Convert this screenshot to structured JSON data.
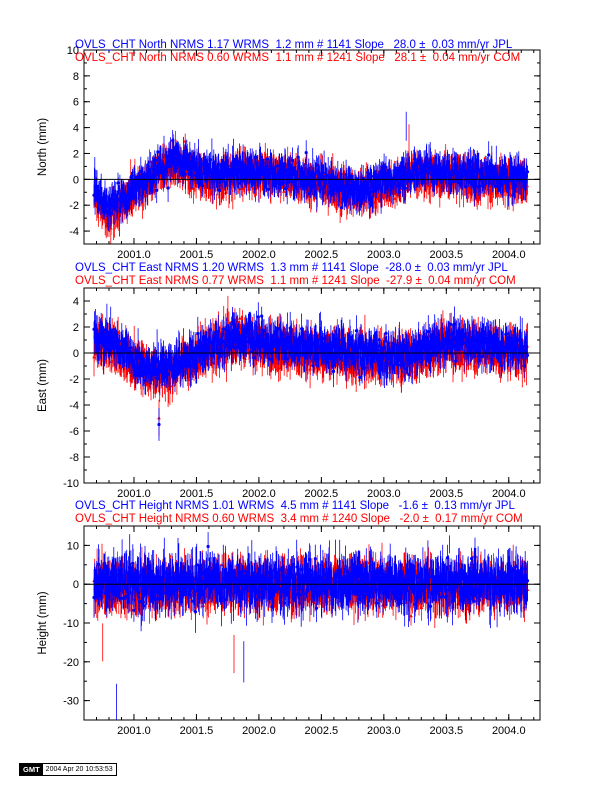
{
  "chart_data": [
    {
      "type": "scatter",
      "title_lines": [
        "OVLS_CHT North NRMS 1.17 WRMS  1.2 mm # 1141 Slope   28.0 ±  0.03 mm/yr JPL",
        "OVLS_CHT North NRMS 0.60 WRMS  1.1 mm # 1241 Slope   28.1 ±  0.04 mm/yr COM"
      ],
      "ylabel": "North (mm)",
      "xlim": [
        2000.6,
        2004.25
      ],
      "ylim": [
        -5,
        10
      ],
      "yticks": [
        -4,
        -2,
        0,
        2,
        4,
        6,
        8,
        10
      ],
      "xticks": [
        2001.0,
        2001.5,
        2002.0,
        2002.5,
        2003.0,
        2003.5,
        2004.0
      ],
      "xtick_labels": [
        "2001.0",
        "2001.5",
        "2002.0",
        "2002.5",
        "2003.0",
        "2003.5",
        "2004.0"
      ],
      "x_start": 2000.68,
      "x_end": 2004.15,
      "series": [
        {
          "color": "#ff0000",
          "n": 1241,
          "marker": "triangle",
          "profile": [
            [
              2000.68,
              -1.0
            ],
            [
              2000.8,
              -2.8
            ],
            [
              2001.0,
              -1.0
            ],
            [
              2001.3,
              1.3
            ],
            [
              2001.6,
              0.1
            ],
            [
              2002.0,
              0.4
            ],
            [
              2002.5,
              -0.3
            ],
            [
              2002.8,
              -1.3
            ],
            [
              2003.0,
              -0.6
            ],
            [
              2003.3,
              0.4
            ],
            [
              2003.6,
              0.1
            ],
            [
              2004.15,
              -0.3
            ]
          ],
          "noise": 1.0,
          "err": 0.9,
          "spikes": [
            [
              2003.2,
              3.0
            ]
          ]
        },
        {
          "color": "#0000ff",
          "n": 1141,
          "marker": "circle",
          "profile": [
            [
              2000.68,
              -0.5
            ],
            [
              2000.8,
              -2.3
            ],
            [
              2001.0,
              -0.7
            ],
            [
              2001.3,
              1.6
            ],
            [
              2001.6,
              0.5
            ],
            [
              2002.0,
              0.8
            ],
            [
              2002.5,
              0.0
            ],
            [
              2002.8,
              -1.0
            ],
            [
              2003.0,
              -0.2
            ],
            [
              2003.3,
              0.8
            ],
            [
              2003.6,
              0.5
            ],
            [
              2004.15,
              0.1
            ]
          ],
          "noise": 1.0,
          "err": 0.8,
          "spikes": [
            [
              2003.18,
              4.1
            ]
          ]
        }
      ]
    },
    {
      "type": "scatter",
      "title_lines": [
        "OVLS_CHT East NRMS 1.20 WRMS  1.3 mm # 1141 Slope  -28.0 ±  0.03 mm/yr JPL",
        "OVLS_CHT East NRMS 0.77 WRMS  1.1 mm # 1241 Slope  -27.9 ±  0.04 mm/yr COM"
      ],
      "ylabel": "East (mm)",
      "xlim": [
        2000.6,
        2004.25
      ],
      "ylim": [
        -10,
        5
      ],
      "yticks": [
        -10,
        -8,
        -6,
        -4,
        -2,
        0,
        2,
        4
      ],
      "xticks": [
        2001.0,
        2001.5,
        2002.0,
        2002.5,
        2003.0,
        2003.5,
        2004.0
      ],
      "xtick_labels": [
        "2001.0",
        "2001.5",
        "2002.0",
        "2002.5",
        "2003.0",
        "2003.5",
        "2004.0"
      ],
      "x_start": 2000.68,
      "x_end": 2004.15,
      "series": [
        {
          "color": "#ff0000",
          "n": 1241,
          "marker": "triangle",
          "profile": [
            [
              2000.68,
              1.0
            ],
            [
              2000.85,
              0.2
            ],
            [
              2001.1,
              -1.5
            ],
            [
              2001.3,
              -1.3
            ],
            [
              2001.6,
              0.3
            ],
            [
              2001.8,
              1.0
            ],
            [
              2002.2,
              0.3
            ],
            [
              2002.6,
              0.0
            ],
            [
              2002.9,
              -0.5
            ],
            [
              2003.2,
              -0.4
            ],
            [
              2003.5,
              0.6
            ],
            [
              2004.15,
              0.0
            ]
          ],
          "noise": 1.1,
          "err": 1.0,
          "spikes": [
            [
              2001.2,
              -5.0
            ]
          ]
        },
        {
          "color": "#0000ff",
          "n": 1141,
          "marker": "circle",
          "profile": [
            [
              2000.68,
              1.3
            ],
            [
              2000.85,
              0.8
            ],
            [
              2001.1,
              -1.2
            ],
            [
              2001.3,
              -1.0
            ],
            [
              2001.6,
              0.6
            ],
            [
              2001.8,
              1.3
            ],
            [
              2002.2,
              0.6
            ],
            [
              2002.6,
              0.3
            ],
            [
              2002.9,
              -0.2
            ],
            [
              2003.2,
              -0.1
            ],
            [
              2003.5,
              0.9
            ],
            [
              2004.15,
              0.3
            ]
          ],
          "noise": 1.1,
          "err": 0.9,
          "spikes": [
            [
              2001.2,
              -5.5
            ]
          ]
        }
      ]
    },
    {
      "type": "scatter",
      "title_lines": [
        "OVLS_CHT Height NRMS 1.01 WRMS  4.5 mm # 1141 Slope   -1.6 ±  0.13 mm/yr JPL",
        "OVLS_CHT Height NRMS 0.60 WRMS  3.4 mm # 1240 Slope   -2.0 ±  0.17 mm/yr COM"
      ],
      "ylabel": "Height (mm)",
      "xlim": [
        2000.6,
        2004.25
      ],
      "ylim": [
        -35,
        15
      ],
      "yticks": [
        -30,
        -20,
        -10,
        0,
        10
      ],
      "xticks": [
        2001.0,
        2001.5,
        2002.0,
        2002.5,
        2003.0,
        2003.5,
        2004.0
      ],
      "xtick_labels": [
        "2001.0",
        "2001.5",
        "2002.0",
        "2002.5",
        "2003.0",
        "2003.5",
        "2004.0"
      ],
      "x_start": 2000.68,
      "x_end": 2004.15,
      "series": [
        {
          "color": "#ff0000",
          "n": 1240,
          "marker": "triangle",
          "profile": [
            [
              2000.68,
              -0.5
            ],
            [
              2002.0,
              -0.5
            ],
            [
              2004.15,
              -0.5
            ]
          ],
          "noise": 4.2,
          "err": 3.5,
          "spikes": [
            [
              2000.75,
              -15.0
            ],
            [
              2001.8,
              -18.0
            ]
          ]
        },
        {
          "color": "#0000ff",
          "n": 1141,
          "marker": "circle",
          "profile": [
            [
              2000.68,
              0.3
            ],
            [
              2002.0,
              0.3
            ],
            [
              2004.15,
              0.3
            ]
          ],
          "noise": 4.8,
          "err": 3.8,
          "spikes": [
            [
              2000.86,
              -31.0
            ],
            [
              2001.88,
              -20.0
            ]
          ]
        }
      ]
    }
  ],
  "gmt_stamp": {
    "logo": "GMT",
    "text": "2004 Apr 20 10:53:53"
  }
}
